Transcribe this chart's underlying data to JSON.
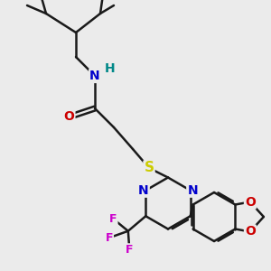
{
  "bg_color": "#ebebeb",
  "bond_color": "#1a1a1a",
  "bond_width": 1.8,
  "atom_colors": {
    "N": "#0000cc",
    "O": "#cc0000",
    "S": "#cccc00",
    "F": "#cc00cc",
    "H": "#008888",
    "C": "#1a1a1a"
  },
  "fig_size": [
    3.0,
    3.0
  ],
  "dpi": 100,
  "xlim": [
    0,
    10
  ],
  "ylim": [
    0,
    10
  ]
}
